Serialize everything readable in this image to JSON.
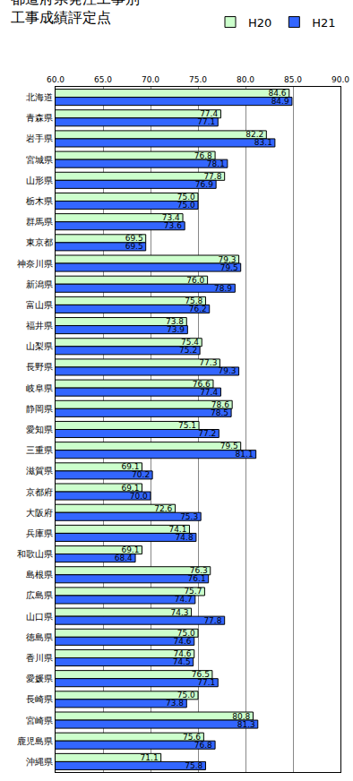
{
  "chart_data": {
    "type": "bar",
    "title": "都道府県発注工事別\n工事成績評定点",
    "orientation": "horizontal",
    "grid": true,
    "legend": "top right",
    "data_labels": true,
    "categories": [
      "北海道",
      "青森県",
      "岩手県",
      "宮城県",
      "山形県",
      "栃木県",
      "群馬県",
      "東京都",
      "神奈川県",
      "新潟県",
      "富山県",
      "福井県",
      "山梨県",
      "長野県",
      "岐阜県",
      "静岡県",
      "愛知県",
      "三重県",
      "滋賀県",
      "京都府",
      "大阪府",
      "兵庫県",
      "和歌山県",
      "島根県",
      "広島県",
      "山口県",
      "徳島県",
      "香川県",
      "愛媛県",
      "長崎県",
      "宮崎県",
      "鹿児島県",
      "沖縄県"
    ],
    "xlim": [
      60,
      90
    ],
    "xticks": [
      {
        "value": 60,
        "label": "60.0"
      },
      {
        "value": 65,
        "label": "65.0"
      },
      {
        "value": 70,
        "label": "70.0"
      },
      {
        "value": 75,
        "label": "75.0"
      },
      {
        "value": 80,
        "label": "80.0"
      },
      {
        "value": 85,
        "label": "85.0"
      },
      {
        "value": 90,
        "label": "90.0"
      }
    ],
    "series": [
      {
        "name": "H20",
        "color": "#ccffcc",
        "values": [
          84.6,
          77.4,
          82.2,
          76.8,
          77.8,
          75.0,
          73.4,
          69.5,
          79.3,
          76.0,
          75.8,
          73.8,
          75.4,
          77.3,
          76.6,
          78.6,
          75.1,
          79.5,
          69.1,
          69.1,
          72.6,
          74.1,
          69.1,
          76.3,
          75.7,
          74.3,
          75.0,
          74.6,
          76.5,
          75.0,
          80.8,
          75.6,
          71.1
        ],
        "value_labels": [
          "84.6",
          "77.4",
          "82.2",
          "76.8",
          "77.8",
          "75.0",
          "73.4",
          "69.5",
          "79.3",
          "76.0",
          "75.8",
          "73.8",
          "75.4",
          "77.3",
          "76.6",
          "78.6",
          "75.1",
          "79.5",
          "69.1",
          "69.1",
          "72.6",
          "74.1",
          "69.1",
          "76.3",
          "75.7",
          "74.3",
          "75.0",
          "74.6",
          "76.5",
          "75.0",
          "80.8",
          "75.6",
          "71.1"
        ]
      },
      {
        "name": "H21",
        "color": "#3366ff",
        "values": [
          84.9,
          77.1,
          83.1,
          78.1,
          76.9,
          75.0,
          73.6,
          69.5,
          79.5,
          78.9,
          76.2,
          73.9,
          75.2,
          79.3,
          77.4,
          78.5,
          77.2,
          81.1,
          70.2,
          70.0,
          75.3,
          74.8,
          68.4,
          76.1,
          74.7,
          77.8,
          74.6,
          74.5,
          77.1,
          73.8,
          81.3,
          76.8,
          75.8
        ],
        "value_labels": [
          "84.9",
          "77.1",
          "83.1",
          "78.1",
          "76.9",
          "75.0",
          "73.6",
          "69.5",
          "79.5",
          "78.9",
          "76.2",
          "73.9",
          "75.2",
          "79.3",
          "77.4",
          "78.5",
          "77.2",
          "81.1",
          "70.2",
          "70.0",
          "75.3",
          "74.8",
          "68.4",
          "76.1",
          "74.7",
          "77.8",
          "74.6",
          "74.5",
          "77.1",
          "73.8",
          "81.3",
          "76.8",
          "75.8"
        ]
      }
    ]
  }
}
